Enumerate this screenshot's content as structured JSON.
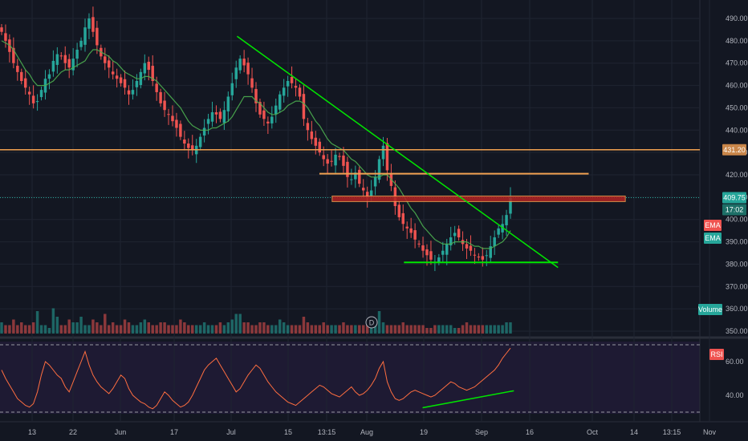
{
  "chart_data": {
    "type": "candlestick",
    "price_axis": {
      "ticks": [
        "490.00",
        "480.00",
        "470.00",
        "460.00",
        "450.00",
        "440.00",
        "430.00",
        "420.00",
        "410.00",
        "400.00",
        "390.00",
        "380.00",
        "370.00",
        "360.00",
        "350.00"
      ],
      "tick_values": [
        490,
        480,
        470,
        460,
        450,
        440,
        430,
        420,
        410,
        400,
        390,
        380,
        370,
        360,
        350
      ],
      "ylim": [
        350,
        495
      ]
    },
    "time_axis": {
      "labels": [
        "13",
        "22",
        "Jun",
        "17",
        "Jul",
        "15",
        "13:15",
        "Aug",
        "19",
        "Sep",
        "16",
        "Oct",
        "14",
        "13:15",
        "Nov"
      ]
    },
    "price_tags": {
      "resistance": "431.20",
      "last_price": "409.75",
      "countdown": "17:02",
      "ema_fast": "EMA",
      "ema_slow": "EMA"
    },
    "close_series": [
      484,
      480,
      475,
      470,
      466,
      462,
      459,
      456,
      452,
      453,
      458,
      463,
      465,
      471,
      474,
      473,
      470,
      468,
      472,
      476,
      480,
      486,
      490,
      484,
      478,
      473,
      470,
      468,
      465,
      463,
      461,
      459,
      456,
      458,
      462,
      466,
      470,
      467,
      462,
      457,
      452,
      449,
      447,
      444,
      441,
      437,
      434,
      432,
      431,
      433,
      437,
      441,
      445,
      448,
      447,
      445,
      449,
      455,
      461,
      468,
      472,
      469,
      465,
      459,
      452,
      447,
      445,
      443,
      446,
      451,
      456,
      459,
      462,
      461,
      459,
      455,
      445,
      440,
      436,
      433,
      430,
      427,
      425,
      426,
      429,
      428,
      424,
      419,
      418,
      421,
      416,
      413,
      410,
      413,
      419,
      427,
      433,
      422,
      415,
      406,
      401,
      398,
      396,
      394,
      391,
      389,
      386,
      384,
      382,
      381,
      383,
      386,
      389,
      392,
      394,
      392,
      389,
      387,
      386,
      384,
      383,
      382,
      384,
      388,
      392,
      396,
      398,
      402,
      409.75
    ],
    "ema_fast_series": [
      480,
      479,
      478,
      476,
      473,
      470,
      467,
      465,
      462,
      460,
      460,
      460,
      461,
      462,
      464,
      466,
      467,
      467,
      468,
      469,
      470,
      471,
      474,
      476,
      476,
      475,
      474,
      473,
      471,
      470,
      468,
      466,
      465,
      464,
      463,
      463,
      464,
      464,
      463,
      462,
      460,
      458,
      456,
      454,
      452,
      450,
      447,
      444,
      442,
      441,
      440,
      440,
      440,
      441,
      441,
      442,
      443,
      444,
      446,
      449,
      452,
      455,
      455,
      455,
      453,
      452,
      450,
      448,
      447,
      447,
      448,
      449,
      451,
      452,
      453,
      453,
      452,
      450,
      447,
      444,
      442,
      439,
      436,
      434,
      433,
      432,
      431,
      429,
      427,
      426,
      424,
      422,
      420,
      419,
      419,
      419,
      420,
      420,
      418,
      416,
      414,
      411,
      408,
      405,
      403,
      400,
      397,
      395,
      393,
      391,
      390,
      389,
      389,
      389,
      390,
      390,
      390,
      390,
      389,
      388,
      388,
      387,
      387,
      387,
      388,
      389,
      390,
      392,
      395
    ],
    "overlays": {
      "resistance_level": 431.2,
      "mid_level": 420.5,
      "supply_zone": [
        408,
        410.5
      ],
      "support_level": 380.8,
      "downtrend_line": {
        "start": [
          0.317,
          482
        ],
        "end": [
          0.746,
          378.5
        ]
      },
      "support_line": {
        "start": [
          0.54,
          380.8
        ],
        "end": [
          0.746,
          380.8
        ]
      },
      "resistance_line": {
        "start": [
          0.427,
          420.5
        ],
        "end": [
          0.787,
          420.5
        ]
      },
      "zone_span": [
        0.444,
        0.836
      ]
    },
    "volume": {
      "label": "Volume",
      "tag": "D",
      "values": [
        4,
        3,
        3,
        5,
        3,
        4,
        3,
        3,
        4,
        8,
        3,
        3,
        2,
        9,
        6,
        3,
        3,
        5,
        4,
        4,
        6,
        3,
        3,
        5,
        4,
        3,
        7,
        3,
        4,
        3,
        3,
        5,
        4,
        3,
        3,
        4,
        5,
        4,
        3,
        3,
        4,
        4,
        3,
        3,
        3,
        5,
        4,
        3,
        3,
        3,
        3,
        4,
        3,
        3,
        3,
        4,
        3,
        4,
        5,
        7,
        7,
        4,
        4,
        3,
        3,
        4,
        4,
        3,
        3,
        3,
        5,
        4,
        3,
        3,
        3,
        3,
        6,
        4,
        3,
        3,
        3,
        4,
        3,
        3,
        3,
        3,
        4,
        3,
        3,
        3,
        3,
        3,
        3,
        3,
        5,
        8,
        4,
        3,
        3,
        3,
        3,
        4,
        3,
        3,
        3,
        3,
        3,
        2,
        2,
        3,
        3,
        3,
        3,
        3,
        2,
        2,
        3,
        4,
        3,
        3,
        3,
        3,
        3,
        3,
        3,
        3,
        3,
        4,
        4
      ]
    },
    "rsi": {
      "label": "RSI",
      "ticks": [
        "60.00",
        "40.00"
      ],
      "tick_values": [
        60,
        40
      ],
      "range": [
        30,
        70
      ],
      "bands": [
        70,
        30
      ],
      "values": [
        55,
        50,
        46,
        42,
        38,
        36,
        34,
        33,
        35,
        42,
        52,
        60,
        58,
        55,
        52,
        50,
        45,
        42,
        48,
        54,
        60,
        66,
        58,
        52,
        48,
        45,
        43,
        41,
        44,
        48,
        52,
        50,
        44,
        40,
        38,
        36,
        35,
        33,
        32,
        34,
        38,
        42,
        40,
        37,
        35,
        33,
        34,
        36,
        40,
        45,
        50,
        55,
        58,
        60,
        62,
        58,
        54,
        50,
        46,
        42,
        44,
        48,
        52,
        55,
        58,
        56,
        52,
        48,
        45,
        42,
        40,
        38,
        36,
        35,
        34,
        36,
        38,
        40,
        42,
        44,
        46,
        45,
        43,
        41,
        40,
        39,
        41,
        43,
        45,
        42,
        40,
        41,
        43,
        46,
        50,
        56,
        60,
        48,
        42,
        38,
        37,
        38,
        40,
        42,
        43,
        42,
        41,
        40,
        39,
        40,
        42,
        44,
        46,
        48,
        47,
        45,
        44,
        43,
        44,
        45,
        47,
        49,
        51,
        53,
        55,
        58,
        62,
        65,
        68
      ],
      "trendline": {
        "start": [
          0.565,
          32.6
        ],
        "end": [
          0.687,
          42.7
        ]
      }
    },
    "colors": {
      "up": "#26a69a",
      "down": "#ef5350",
      "ema_line": "#4caf50",
      "trendline": "#00e600",
      "resistance": "#f0a050",
      "last_price": "#26a69a",
      "zone_fill": "#b22222",
      "rsi_line": "#ff6e40",
      "rsi_bg": "#2a1f4a"
    }
  }
}
